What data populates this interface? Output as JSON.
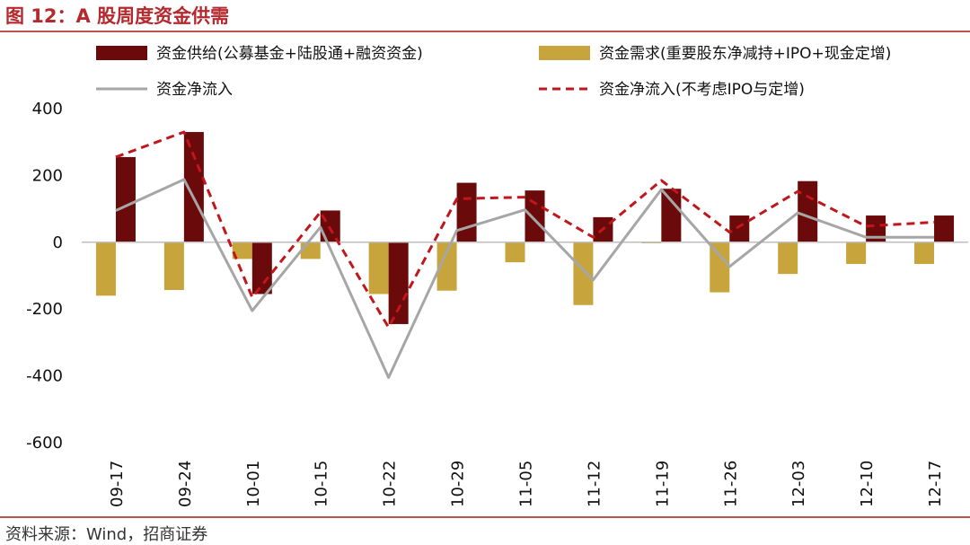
{
  "figure_title": "图 12：A 股周度资金供需",
  "source": "资料来源：Wind，招商证券",
  "colors": {
    "supply": "#6B0A0A",
    "demand": "#C8A43D",
    "net": "#A6A6A6",
    "net_ex": "#C0161C",
    "accent": "#B5282D"
  },
  "chart_data": {
    "type": "bar",
    "title": "A 股周度资金供需",
    "categories": [
      "09-17",
      "09-24",
      "10-01",
      "10-15",
      "10-22",
      "10-29",
      "11-05",
      "11-12",
      "11-19",
      "11-26",
      "12-03",
      "12-10",
      "12-17"
    ],
    "ylim": [
      -600,
      400
    ],
    "yticks": [
      400,
      200,
      0,
      -200,
      -400,
      -600
    ],
    "grid": false,
    "legend_position": "top",
    "series": [
      {
        "name": "资金供给(公募基金+陆股通+融资资金)",
        "type": "bar",
        "values": [
          255,
          330,
          -155,
          95,
          -245,
          178,
          155,
          75,
          160,
          80,
          183,
          80,
          80
        ]
      },
      {
        "name": "资金需求(重要股东净减持+IPO+现金定增)",
        "type": "bar",
        "values": [
          -160,
          -143,
          -50,
          -50,
          -155,
          -145,
          -60,
          -188,
          -3,
          -150,
          -95,
          -65,
          -65
        ]
      },
      {
        "name": "资金净流入",
        "type": "line",
        "values": [
          95,
          188,
          -205,
          45,
          -405,
          35,
          97,
          -113,
          158,
          -73,
          88,
          15,
          15
        ]
      },
      {
        "name": "资金净流入(不考虑IPO与定增)",
        "type": "line",
        "values": [
          255,
          330,
          -165,
          90,
          -255,
          130,
          135,
          15,
          185,
          30,
          152,
          48,
          60
        ]
      }
    ]
  }
}
